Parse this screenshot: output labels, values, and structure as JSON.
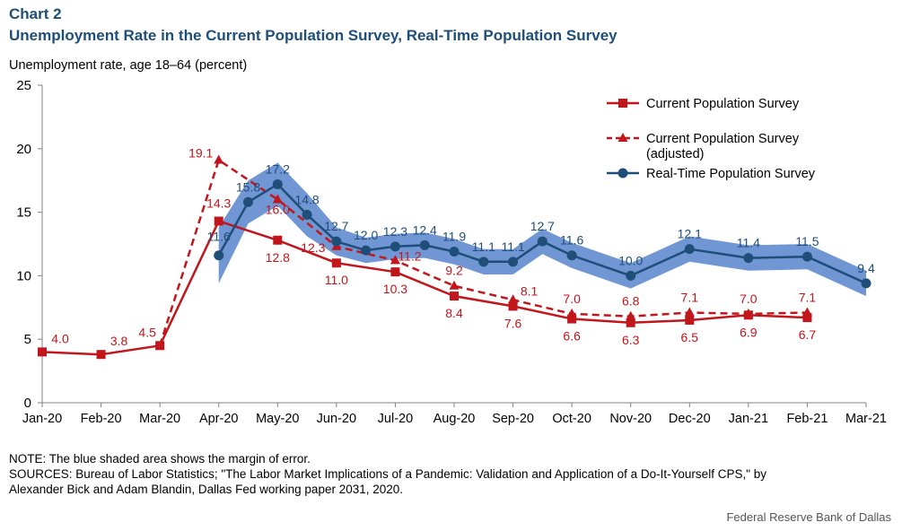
{
  "header": {
    "chart_number": "Chart 2",
    "title": "Unemployment Rate in the Current Population Survey, Real-Time Population Survey"
  },
  "footer": {
    "note": "NOTE: The blue shaded area shows the margin of error.",
    "sources_line1": "SOURCES: Bureau of Labor Statistics; \"The Labor Market Implications of a Pandemic: Validation and Application of a Do-It-Yourself CPS,\" by",
    "sources_line2": "Alexander Bick and Adam Blandin, Dallas Fed working paper 2031, 2020.",
    "credit": "Federal Reserve Bank of Dallas"
  },
  "colors": {
    "cps": "#c0161c",
    "rps": "#1f4e79",
    "band": "#7097d4",
    "axis": "#808080"
  },
  "chart_data": {
    "type": "line",
    "ylabel": "Unemployment rate, age 18–64 (percent)",
    "ylim": [
      0,
      25
    ],
    "yticks": [
      0,
      5,
      10,
      15,
      20,
      25
    ],
    "xlim": [
      0,
      14
    ],
    "categories": [
      "Jan-20",
      "Feb-20",
      "Mar-20",
      "Apr-20",
      "May-20",
      "Jun-20",
      "Jul-20",
      "Aug-20",
      "Sep-20",
      "Oct-20",
      "Nov-20",
      "Dec-20",
      "Jan-21",
      "Feb-21",
      "Mar-21"
    ],
    "legend_position": "top-right",
    "grid": false,
    "series": [
      {
        "name": "Current Population Survey",
        "style": "solid",
        "marker": "square",
        "color": "#c0161c",
        "points": [
          {
            "x": 0,
            "y": 4.0,
            "label": "4.0"
          },
          {
            "x": 1,
            "y": 3.8,
            "label": "3.8"
          },
          {
            "x": 2,
            "y": 4.5,
            "label": "4.5"
          },
          {
            "x": 3,
            "y": 14.3,
            "label": "14.3"
          },
          {
            "x": 4,
            "y": 12.8,
            "label": "12.8"
          },
          {
            "x": 5,
            "y": 11.0,
            "label": "11.0"
          },
          {
            "x": 6,
            "y": 10.3,
            "label": "10.3"
          },
          {
            "x": 7,
            "y": 8.4,
            "label": "8.4"
          },
          {
            "x": 8,
            "y": 7.6,
            "label": "7.6"
          },
          {
            "x": 9,
            "y": 6.6,
            "label": "6.6"
          },
          {
            "x": 10,
            "y": 6.3,
            "label": "6.3"
          },
          {
            "x": 11,
            "y": 6.5,
            "label": "6.5"
          },
          {
            "x": 12,
            "y": 6.9,
            "label": "6.9"
          },
          {
            "x": 13,
            "y": 6.7,
            "label": "6.7"
          }
        ]
      },
      {
        "name": "Current Population Survey",
        "name_line2": "(adjusted)",
        "style": "dashed",
        "marker": "triangle",
        "color": "#c0161c",
        "points": [
          {
            "x": 2,
            "y": 4.5,
            "label": ""
          },
          {
            "x": 3,
            "y": 19.1,
            "label": "19.1"
          },
          {
            "x": 4,
            "y": 16.0,
            "label": "16.0"
          },
          {
            "x": 5,
            "y": 12.3,
            "label": "12.3"
          },
          {
            "x": 6,
            "y": 11.2,
            "label": "11.2"
          },
          {
            "x": 7,
            "y": 9.2,
            "label": "9.2"
          },
          {
            "x": 8,
            "y": 8.1,
            "label": "8.1"
          },
          {
            "x": 9,
            "y": 7.0,
            "label": "7.0"
          },
          {
            "x": 10,
            "y": 6.8,
            "label": "6.8"
          },
          {
            "x": 11,
            "y": 7.1,
            "label": "7.1"
          },
          {
            "x": 12,
            "y": 7.0,
            "label": "7.0"
          },
          {
            "x": 13,
            "y": 7.1,
            "label": "7.1"
          }
        ]
      },
      {
        "name": "Real-Time Population Survey",
        "style": "solid",
        "marker": "circle",
        "color": "#1f4e79",
        "points": [
          {
            "x": 3,
            "y": 11.6,
            "label": "11.6"
          },
          {
            "x": 3.5,
            "y": 15.8,
            "label": "15.8"
          },
          {
            "x": 4,
            "y": 17.2,
            "label": "17.2"
          },
          {
            "x": 4.5,
            "y": 14.8,
            "label": "14.8"
          },
          {
            "x": 5,
            "y": 12.7,
            "label": "12.7"
          },
          {
            "x": 5.5,
            "y": 12.0,
            "label": "12.0"
          },
          {
            "x": 6,
            "y": 12.3,
            "label": "12.3"
          },
          {
            "x": 6.5,
            "y": 12.4,
            "label": "12.4"
          },
          {
            "x": 7,
            "y": 11.9,
            "label": "11.9"
          },
          {
            "x": 7.5,
            "y": 11.1,
            "label": "11.1"
          },
          {
            "x": 8,
            "y": 11.1,
            "label": "11.1"
          },
          {
            "x": 8.5,
            "y": 12.7,
            "label": "12.7"
          },
          {
            "x": 9,
            "y": 11.6,
            "label": "11.6"
          },
          {
            "x": 10,
            "y": 10.0,
            "label": "10.0"
          },
          {
            "x": 11,
            "y": 12.1,
            "label": "12.1"
          },
          {
            "x": 12,
            "y": 11.4,
            "label": "11.4"
          },
          {
            "x": 13,
            "y": 11.5,
            "label": "11.5"
          },
          {
            "x": 14,
            "y": 9.4,
            "label": "9.4"
          }
        ]
      }
    ],
    "margin_of_error_band": {
      "series": "Real-Time Population Survey",
      "upper": [
        13.8,
        17.5,
        18.9,
        16.5,
        13.8,
        13.0,
        13.3,
        13.4,
        12.9,
        12.1,
        12.1,
        13.7,
        12.6,
        11.0,
        13.1,
        12.4,
        12.5,
        10.4
      ],
      "lower": [
        9.4,
        14.1,
        15.5,
        13.1,
        11.6,
        11.0,
        11.3,
        11.4,
        10.9,
        10.1,
        10.1,
        11.7,
        10.6,
        9.0,
        11.1,
        10.4,
        10.5,
        8.4
      ]
    }
  }
}
